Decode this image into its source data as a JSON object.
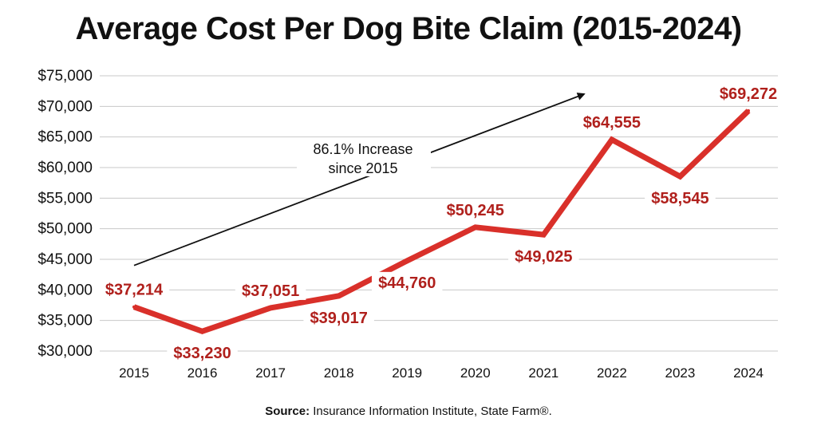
{
  "chart_data": {
    "type": "line",
    "title": "Average Cost Per Dog Bite Claim (2015-2024)",
    "categories": [
      "2015",
      "2016",
      "2017",
      "2018",
      "2019",
      "2020",
      "2021",
      "2022",
      "2023",
      "2024"
    ],
    "values": [
      37214,
      33230,
      37051,
      39017,
      44760,
      50245,
      49025,
      64555,
      58545,
      69272
    ],
    "data_labels": [
      "$37,214",
      "$33,230",
      "$37,051",
      "$39,017",
      "$44,760",
      "$50,245",
      "$49,025",
      "$64,555",
      "$58,545",
      "$69,272"
    ],
    "ylim": [
      30000,
      75000
    ],
    "yticks": [
      30000,
      35000,
      40000,
      45000,
      50000,
      55000,
      60000,
      65000,
      70000,
      75000
    ],
    "ytick_labels": [
      "$30,000",
      "$35,000",
      "$40,000",
      "$45,000",
      "$50,000",
      "$55,000",
      "$60,000",
      "$65,000",
      "$70,000",
      "$75,000"
    ],
    "grid": true,
    "line_color": "#d9302a",
    "label_color": "#b0201c",
    "annotation": {
      "lines": [
        "86.1% Increase",
        "since 2015"
      ],
      "arrow_from": {
        "x": "2015",
        "y": 44000
      },
      "arrow_to": {
        "x": "2022",
        "y": 72000
      }
    }
  },
  "source": {
    "label": "Source:",
    "text": " Insurance Information Institute, State Farm®."
  }
}
